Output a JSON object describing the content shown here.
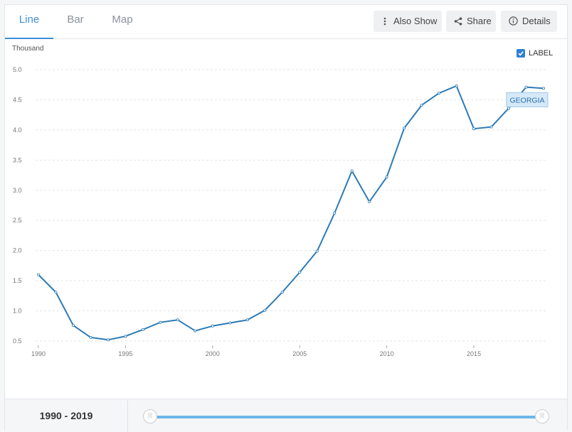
{
  "tabs": [
    {
      "label": "Line",
      "active": true
    },
    {
      "label": "Bar",
      "active": false
    },
    {
      "label": "Map",
      "active": false
    }
  ],
  "toolbar": {
    "also_show_label": "Also Show",
    "share_label": "Share",
    "details_label": "Details"
  },
  "legend": {
    "label": "LABEL",
    "checked": true
  },
  "range": {
    "text": "1990 - 2019",
    "start": 1990,
    "end": 2019
  },
  "colors": {
    "accent": "#3f8ed8",
    "line": "#2c7bb6",
    "annotation_bg": "#d6e9f8"
  },
  "chart_data": {
    "type": "line",
    "unit_label": "Thousand",
    "xlim": [
      1990,
      2019
    ],
    "ylim": [
      0.5,
      5.0
    ],
    "x_ticks": [
      1990,
      1995,
      2000,
      2005,
      2010,
      2015
    ],
    "y_ticks": [
      "0.5",
      "1.0",
      "1.5",
      "2.0",
      "2.5",
      "3.0",
      "3.5",
      "4.0",
      "4.5",
      "5.0"
    ],
    "grid": true,
    "series": [
      {
        "name": "GEORGIA",
        "x": [
          1990,
          1991,
          1992,
          1993,
          1994,
          1995,
          1996,
          1997,
          1998,
          1999,
          2000,
          2001,
          2002,
          2003,
          2004,
          2005,
          2006,
          2007,
          2008,
          2009,
          2010,
          2011,
          2012,
          2013,
          2014,
          2015,
          2016,
          2017,
          2018,
          2019
        ],
        "values": [
          1.6,
          1.31,
          0.76,
          0.56,
          0.52,
          0.58,
          0.69,
          0.81,
          0.85,
          0.67,
          0.75,
          0.8,
          0.85,
          1.01,
          1.31,
          1.64,
          1.99,
          2.62,
          3.32,
          2.81,
          3.22,
          4.03,
          4.41,
          4.61,
          4.73,
          4.02,
          4.05,
          4.36,
          4.71,
          4.69
        ]
      }
    ]
  }
}
